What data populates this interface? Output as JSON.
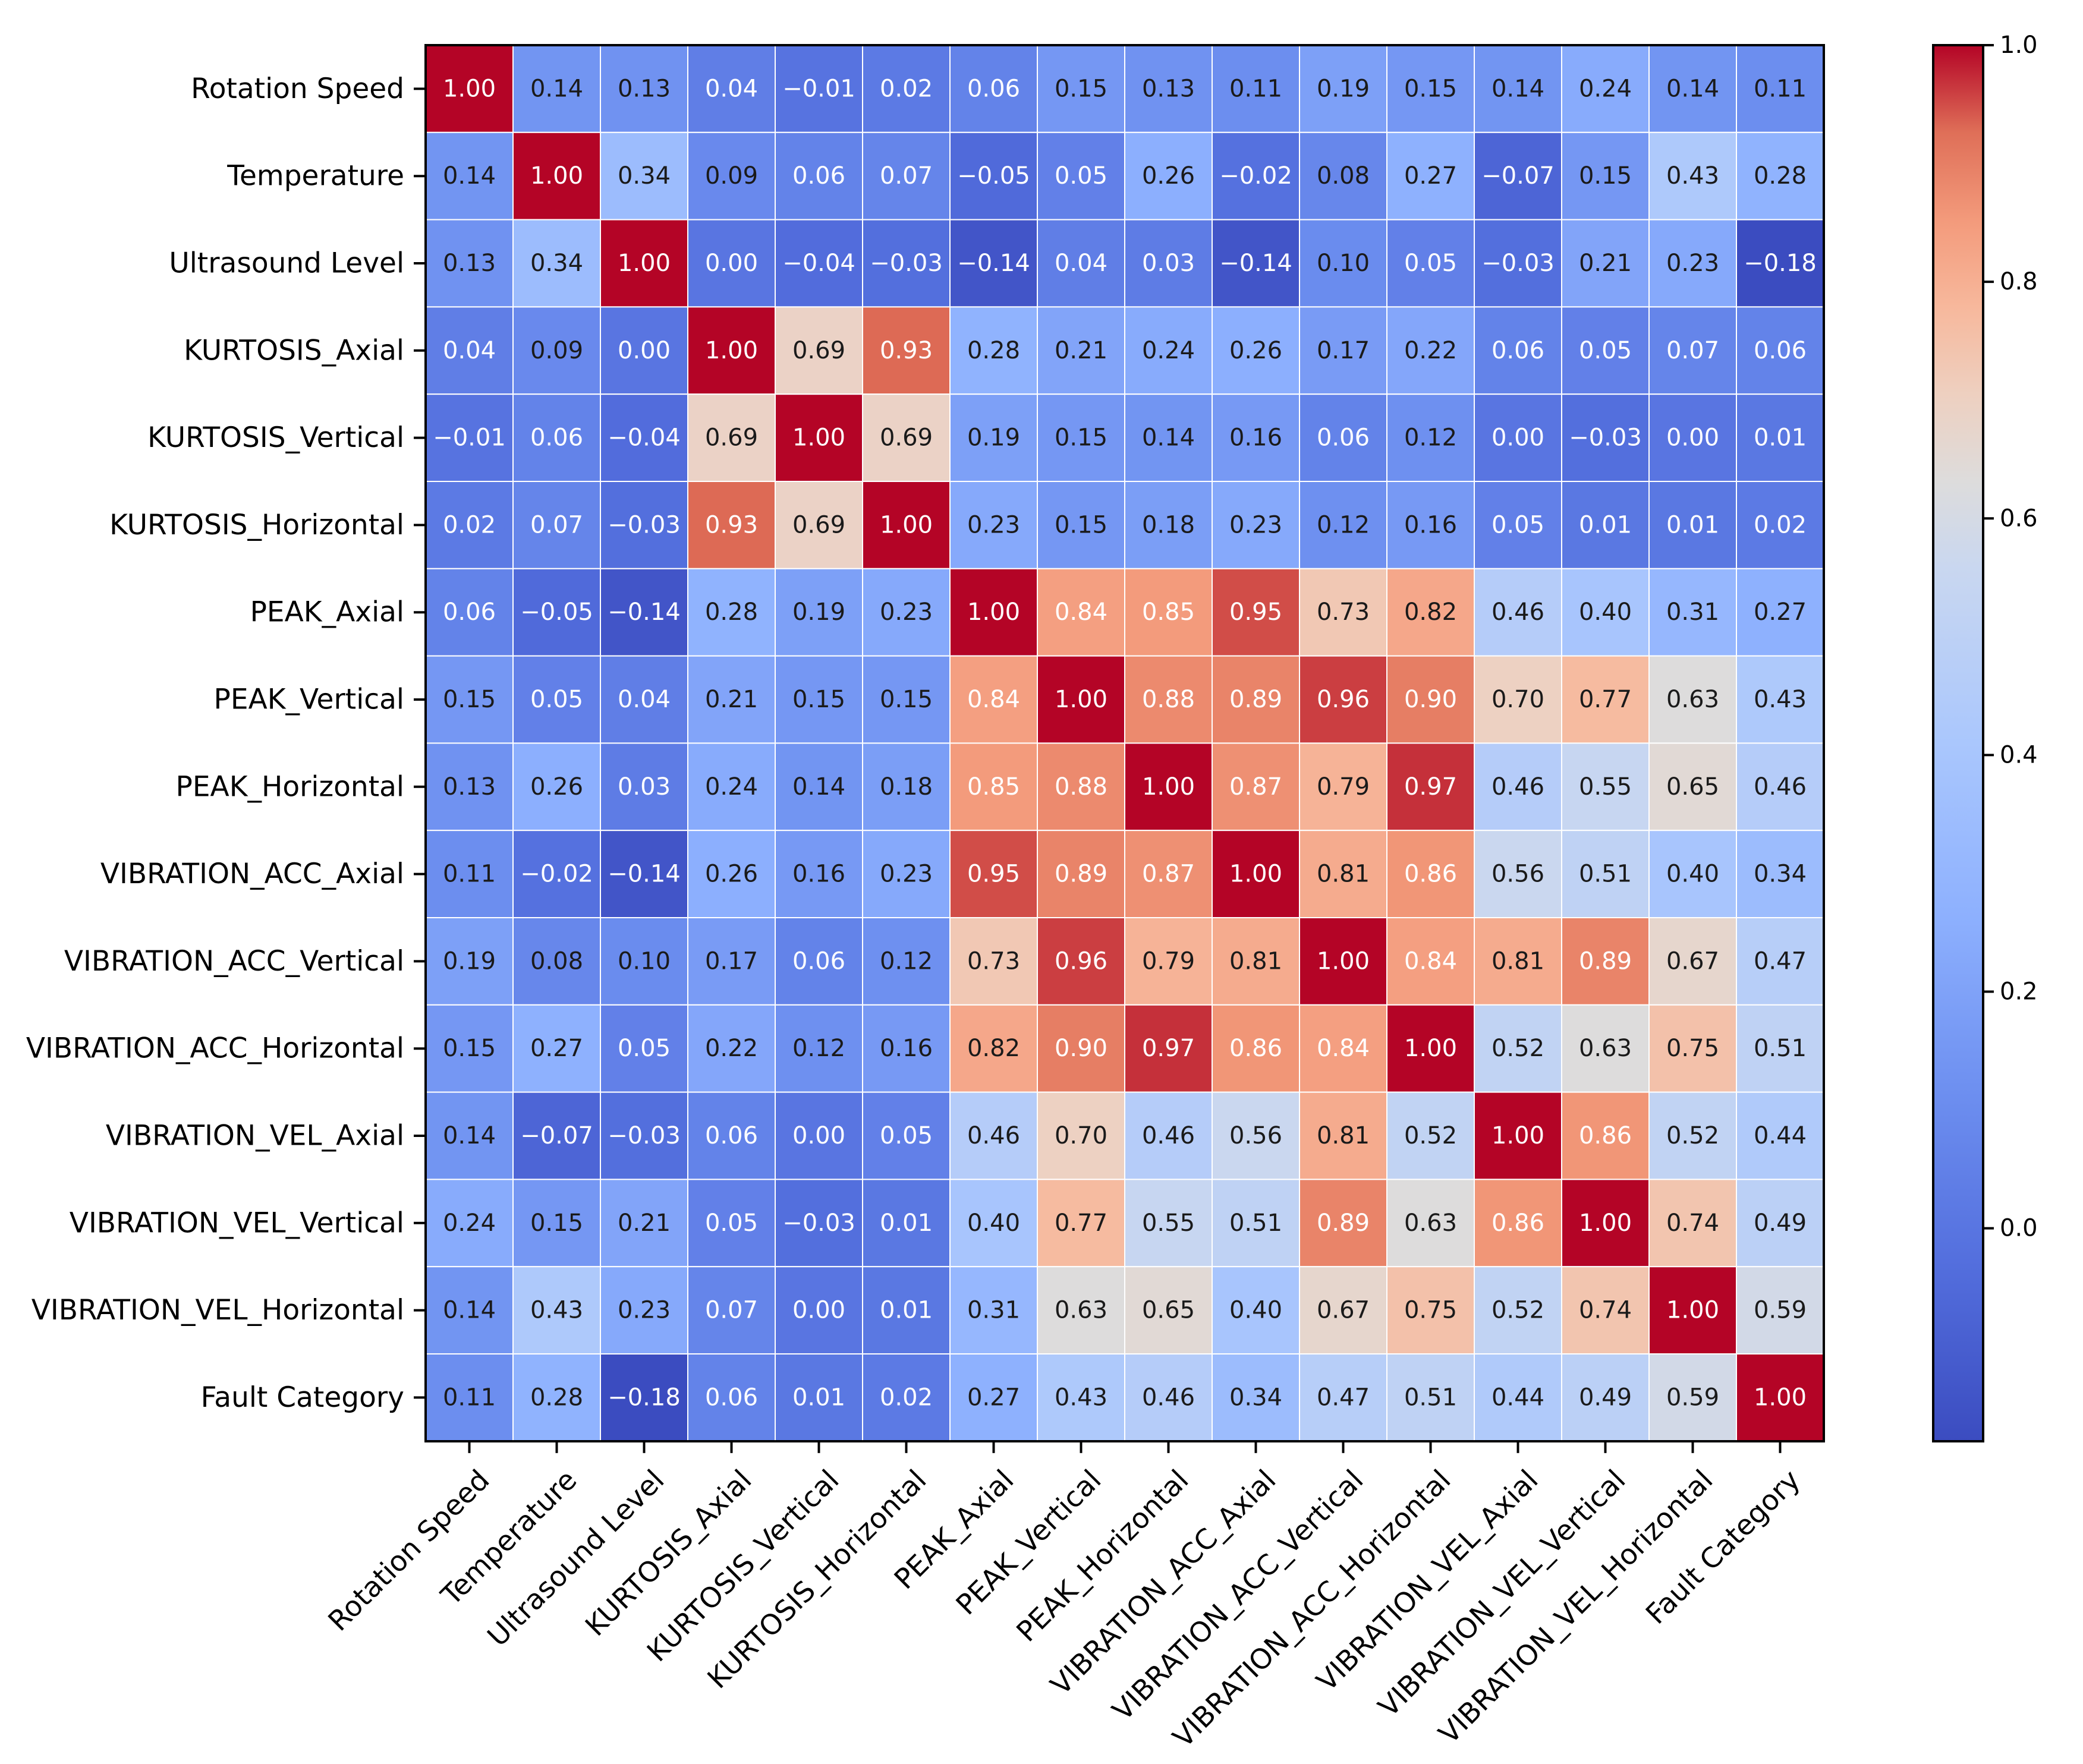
{
  "chart_data": {
    "type": "heatmap",
    "title": "",
    "xlabel": "",
    "ylabel": "",
    "labels": [
      "Rotation Speed",
      "Temperature",
      "Ultrasound Level",
      "KURTOSIS_Axial",
      "KURTOSIS_Vertical",
      "KURTOSIS_Horizontal",
      "PEAK_Axial",
      "PEAK_Vertical",
      "PEAK_Horizontal",
      "VIBRATION_ACC_Axial",
      "VIBRATION_ACC_Vertical",
      "VIBRATION_ACC_Horizontal",
      "VIBRATION_VEL_Axial",
      "VIBRATION_VEL_Vertical",
      "VIBRATION_VEL_Horizontal",
      "Fault Category"
    ],
    "matrix": [
      [
        1.0,
        0.14,
        0.13,
        0.04,
        -0.01,
        0.02,
        0.06,
        0.15,
        0.13,
        0.11,
        0.19,
        0.15,
        0.14,
        0.24,
        0.14,
        0.11
      ],
      [
        0.14,
        1.0,
        0.34,
        0.09,
        0.06,
        0.07,
        -0.05,
        0.05,
        0.26,
        -0.02,
        0.08,
        0.27,
        -0.07,
        0.15,
        0.43,
        0.28
      ],
      [
        0.13,
        0.34,
        1.0,
        0.0,
        -0.04,
        -0.03,
        -0.14,
        0.04,
        0.03,
        -0.14,
        0.1,
        0.05,
        -0.03,
        0.21,
        0.23,
        -0.18
      ],
      [
        0.04,
        0.09,
        0.0,
        1.0,
        0.69,
        0.93,
        0.28,
        0.21,
        0.24,
        0.26,
        0.17,
        0.22,
        0.06,
        0.05,
        0.07,
        0.06
      ],
      [
        -0.01,
        0.06,
        -0.04,
        0.69,
        1.0,
        0.69,
        0.19,
        0.15,
        0.14,
        0.16,
        0.06,
        0.12,
        0.0,
        -0.03,
        0.0,
        0.01
      ],
      [
        0.02,
        0.07,
        -0.03,
        0.93,
        0.69,
        1.0,
        0.23,
        0.15,
        0.18,
        0.23,
        0.12,
        0.16,
        0.05,
        0.01,
        0.01,
        0.02
      ],
      [
        0.06,
        -0.05,
        -0.14,
        0.28,
        0.19,
        0.23,
        1.0,
        0.84,
        0.85,
        0.95,
        0.73,
        0.82,
        0.46,
        0.4,
        0.31,
        0.27
      ],
      [
        0.15,
        0.05,
        0.04,
        0.21,
        0.15,
        0.15,
        0.84,
        1.0,
        0.88,
        0.89,
        0.96,
        0.9,
        0.7,
        0.77,
        0.63,
        0.43
      ],
      [
        0.13,
        0.26,
        0.03,
        0.24,
        0.14,
        0.18,
        0.85,
        0.88,
        1.0,
        0.87,
        0.79,
        0.97,
        0.46,
        0.55,
        0.65,
        0.46
      ],
      [
        0.11,
        -0.02,
        -0.14,
        0.26,
        0.16,
        0.23,
        0.95,
        0.89,
        0.87,
        1.0,
        0.81,
        0.86,
        0.56,
        0.51,
        0.4,
        0.34
      ],
      [
        0.19,
        0.08,
        0.1,
        0.17,
        0.06,
        0.12,
        0.73,
        0.96,
        0.79,
        0.81,
        1.0,
        0.84,
        0.81,
        0.89,
        0.67,
        0.47
      ],
      [
        0.15,
        0.27,
        0.05,
        0.22,
        0.12,
        0.16,
        0.82,
        0.9,
        0.97,
        0.86,
        0.84,
        1.0,
        0.52,
        0.63,
        0.75,
        0.51
      ],
      [
        0.14,
        -0.07,
        -0.03,
        0.06,
        0.0,
        0.05,
        0.46,
        0.7,
        0.46,
        0.56,
        0.81,
        0.52,
        1.0,
        0.86,
        0.52,
        0.44
      ],
      [
        0.24,
        0.15,
        0.21,
        0.05,
        -0.03,
        0.01,
        0.4,
        0.77,
        0.55,
        0.51,
        0.89,
        0.63,
        0.86,
        1.0,
        0.74,
        0.49
      ],
      [
        0.14,
        0.43,
        0.23,
        0.07,
        0.0,
        0.01,
        0.31,
        0.63,
        0.65,
        0.4,
        0.67,
        0.75,
        0.52,
        0.74,
        1.0,
        0.59
      ],
      [
        0.11,
        0.28,
        -0.18,
        0.06,
        0.01,
        0.02,
        0.27,
        0.43,
        0.46,
        0.34,
        0.47,
        0.51,
        0.44,
        0.49,
        0.59,
        1.0
      ]
    ],
    "value_format": "2 decimals",
    "colormap": "coolwarm",
    "vmin": -0.18,
    "vmax": 1.0,
    "colorbar_ticks": [
      "0.0",
      "0.2",
      "0.4",
      "0.6",
      "0.8",
      "1.0"
    ],
    "colorbar_tick_values": [
      0.0,
      0.2,
      0.4,
      0.6,
      0.8,
      1.0
    ],
    "grid": false,
    "legend": "colorbar-right"
  }
}
